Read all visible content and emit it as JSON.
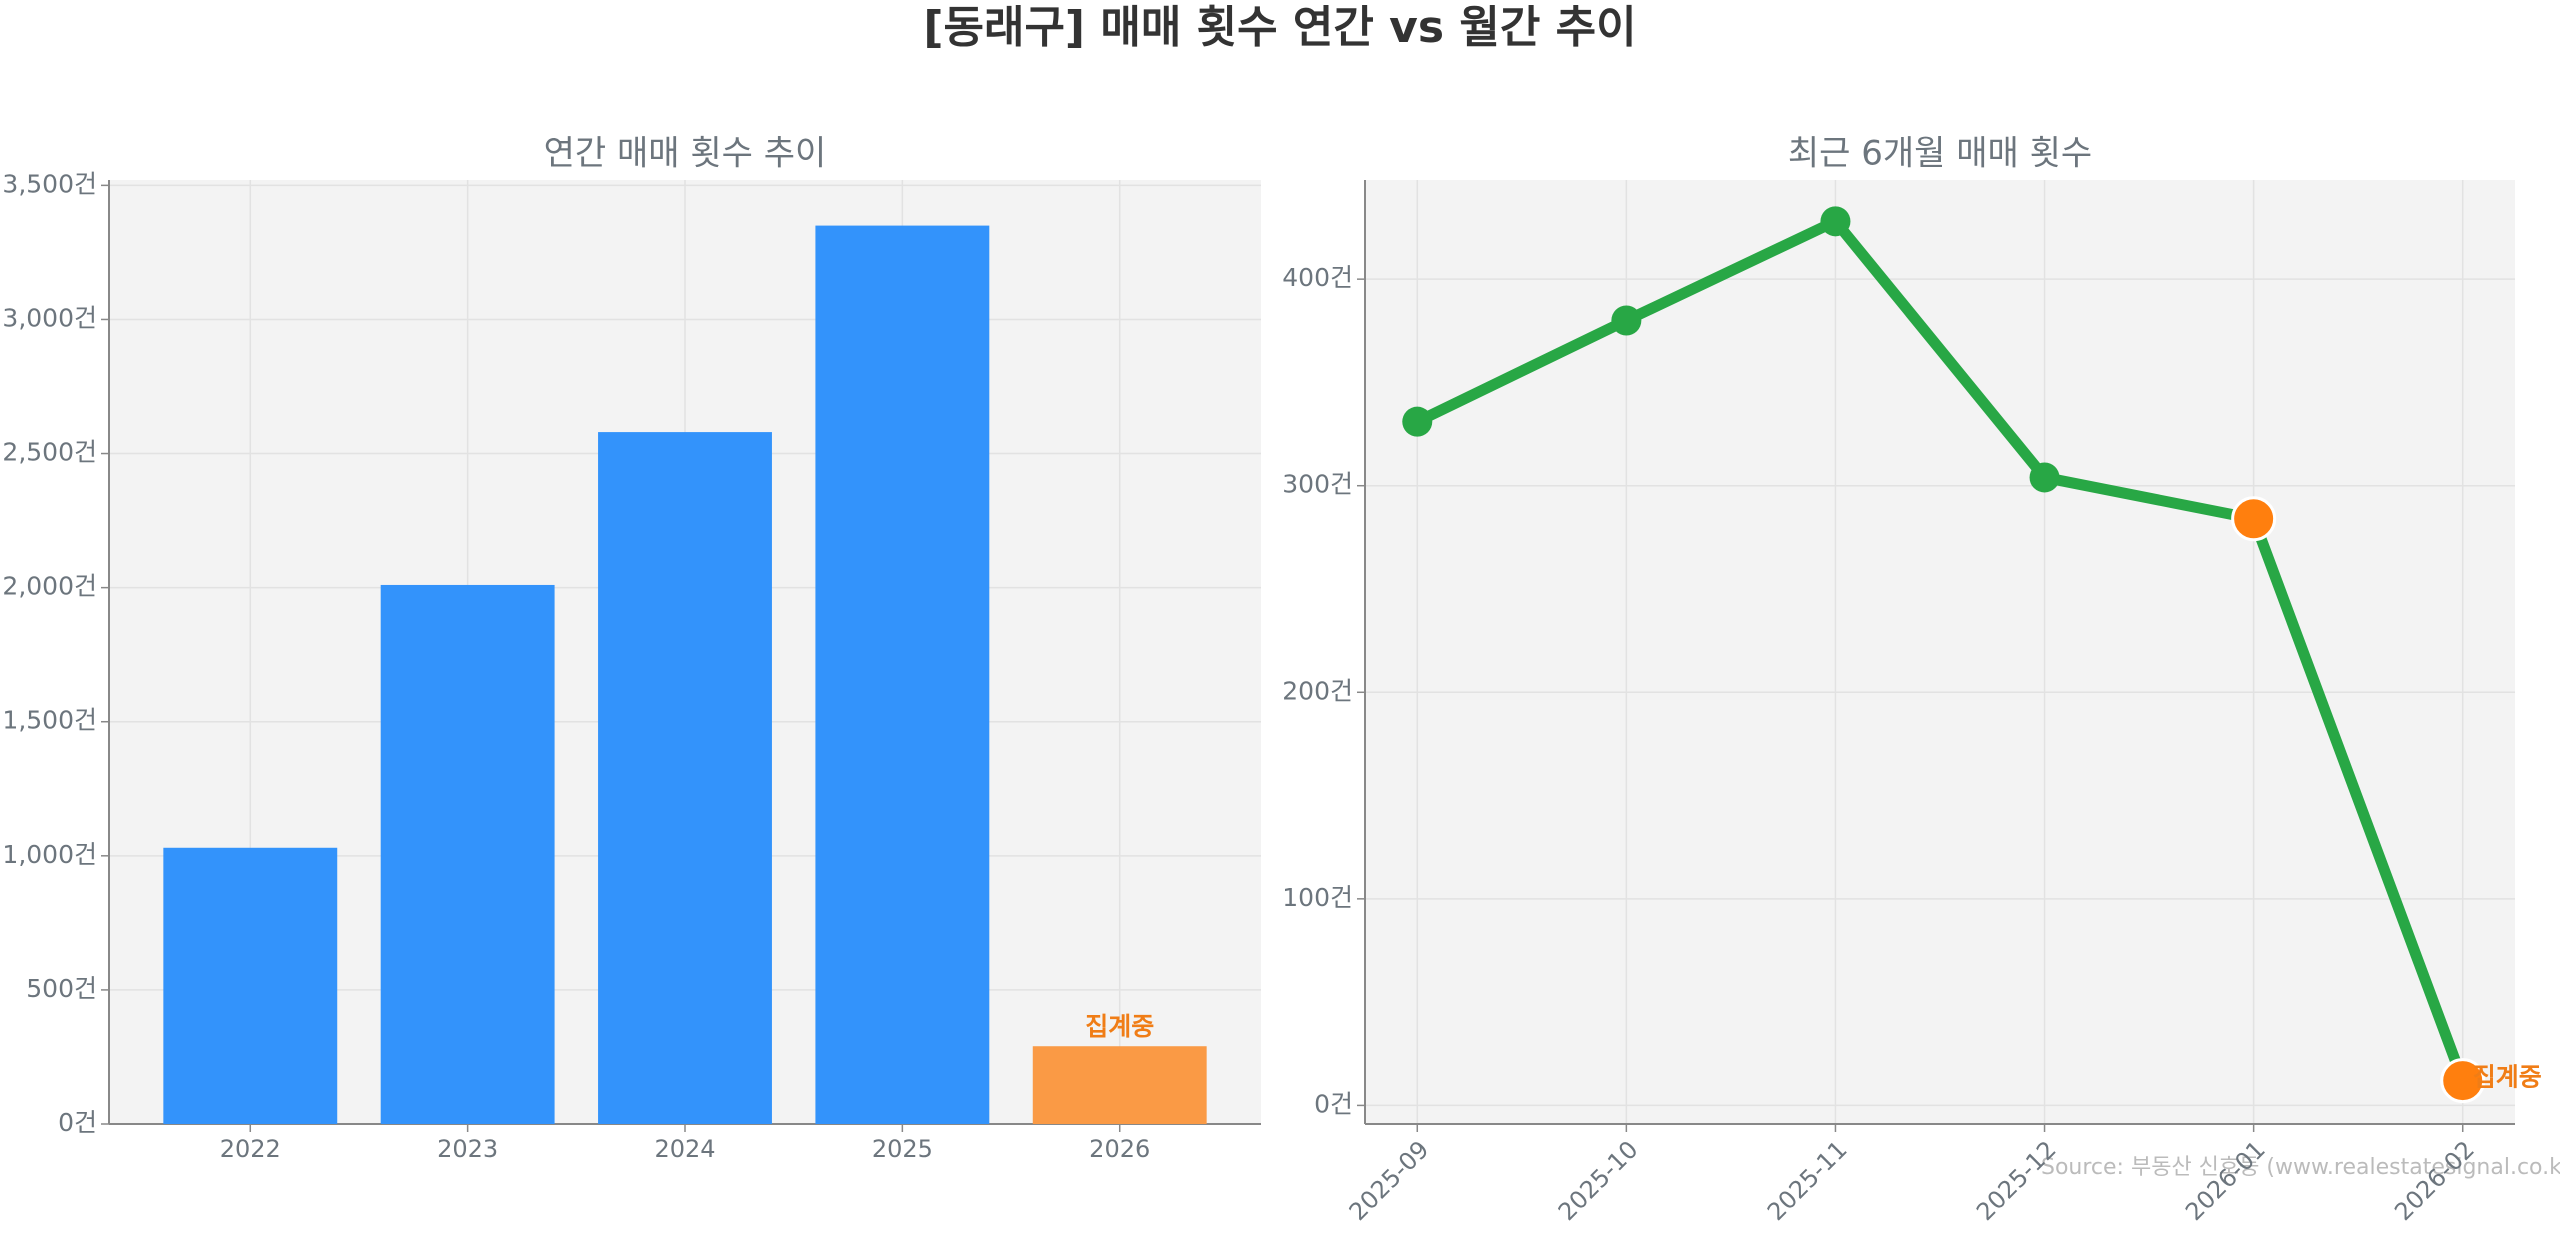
{
  "title": "[동래구] 매매 횟수 연간 vs 월간 추이",
  "source": "Source: 부동산 신호등 (www.realestatesignal.co.kr)",
  "chart_data": [
    {
      "type": "bar",
      "title": "연간 매매 횟수 추이",
      "categories": [
        "2022",
        "2023",
        "2024",
        "2025",
        "2026"
      ],
      "values": [
        1030,
        2010,
        2580,
        3350,
        290
      ],
      "colors": [
        "#3393fb",
        "#3393fb",
        "#3393fb",
        "#3393fb",
        "#fa9a45"
      ],
      "ylim": [
        0,
        3520
      ],
      "yticks": [
        {
          "value": 0,
          "label": "0건"
        },
        {
          "value": 500,
          "label": "500건"
        },
        {
          "value": 1000,
          "label": "1,000건"
        },
        {
          "value": 1500,
          "label": "1,500건"
        },
        {
          "value": 2000,
          "label": "2,000건"
        },
        {
          "value": 2500,
          "label": "2,500건"
        },
        {
          "value": 3000,
          "label": "3,000건"
        },
        {
          "value": 3500,
          "label": "3,500건"
        }
      ],
      "grid": true,
      "annotations": [
        {
          "text": "집계중",
          "at": "2026",
          "color": "#f07d16"
        }
      ]
    },
    {
      "type": "line",
      "title": "최근 6개월 매매 횟수",
      "categories": [
        "2025-09",
        "2025-10",
        "2025-11",
        "2025-12",
        "2026-01",
        "2026-02"
      ],
      "values": [
        331,
        380,
        428,
        304,
        284,
        12
      ],
      "color": "#28a745",
      "marker_colors": [
        "#28a745",
        "#28a745",
        "#28a745",
        "#28a745",
        "#ff7f0e",
        "#ff7f0e"
      ],
      "ylim": [
        -9,
        448
      ],
      "yticks": [
        {
          "value": 0,
          "label": "0건"
        },
        {
          "value": 100,
          "label": "100건"
        },
        {
          "value": 200,
          "label": "200건"
        },
        {
          "value": 300,
          "label": "300건"
        },
        {
          "value": 400,
          "label": "400건"
        }
      ],
      "grid": true,
      "annotations": [
        {
          "text": "집계중",
          "at": "2026-02",
          "color": "#f07d16"
        }
      ]
    }
  ]
}
